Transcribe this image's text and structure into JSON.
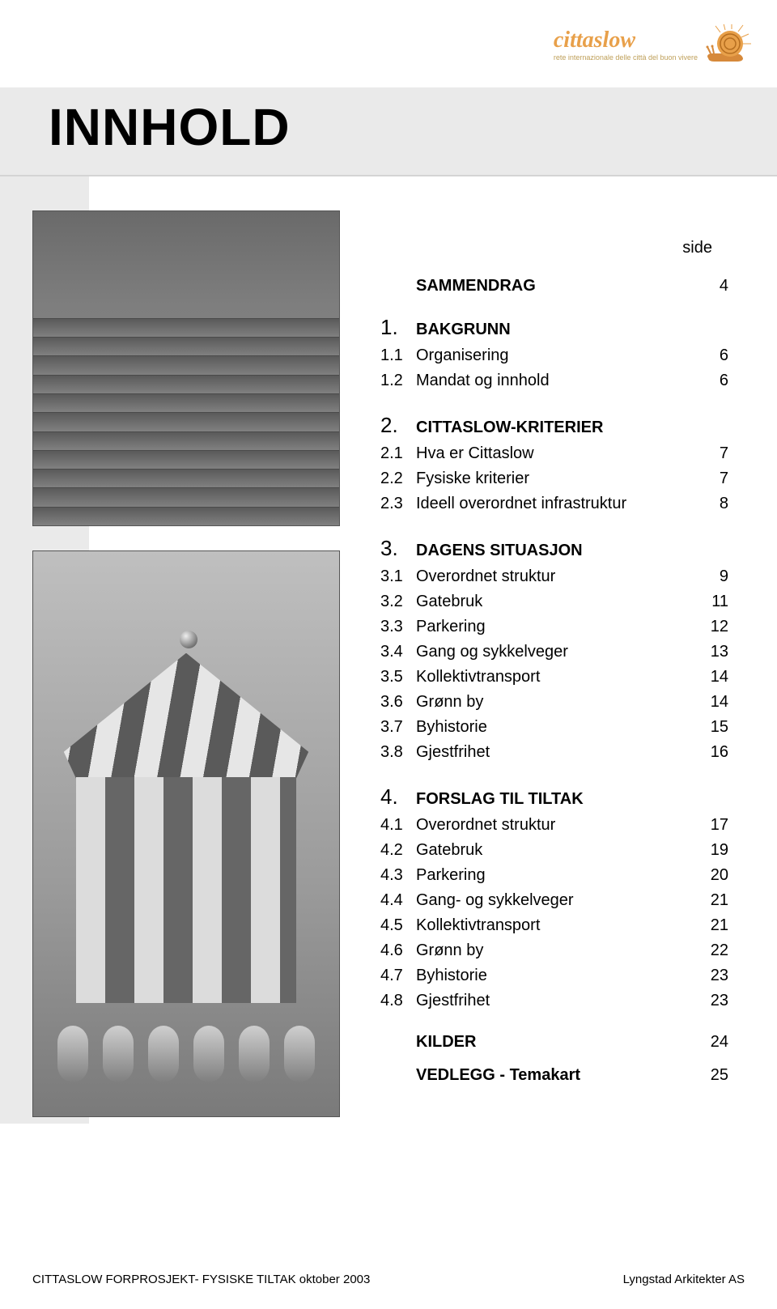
{
  "logo": {
    "brand_text": "cittaslow",
    "tagline": "rete internazionale delle città del buon vivere",
    "brand_color": "#e8a04a",
    "tagline_color": "#bfa05a",
    "snail_shell_color": "#e8a04a",
    "snail_body_color": "#d6893a"
  },
  "title": "INNHOLD",
  "side_label": "side",
  "sections": [
    {
      "num": "",
      "title": "SAMMENDRAG",
      "page": "4",
      "items": []
    },
    {
      "num": "1.",
      "title": "BAKGRUNN",
      "page": "",
      "items": [
        {
          "sub": "1.1",
          "label": "Organisering",
          "page": "6"
        },
        {
          "sub": "1.2",
          "label": "Mandat og innhold",
          "page": "6"
        }
      ]
    },
    {
      "num": "2.",
      "title": "CITTASLOW-KRITERIER",
      "page": "",
      "items": [
        {
          "sub": "2.1",
          "label": "Hva er Cittaslow",
          "page": "7"
        },
        {
          "sub": "2.2",
          "label": "Fysiske kriterier",
          "page": "7"
        },
        {
          "sub": "2.3",
          "label": "Ideell overordnet infrastruktur",
          "page": "8"
        }
      ]
    },
    {
      "num": "3.",
      "title": "DAGENS SITUASJON",
      "page": "",
      "items": [
        {
          "sub": "3.1",
          "label": "Overordnet struktur",
          "page": "9"
        },
        {
          "sub": "3.2",
          "label": "Gatebruk",
          "page": "11"
        },
        {
          "sub": "3.3",
          "label": "Parkering",
          "page": "12"
        },
        {
          "sub": "3.4",
          "label": "Gang og sykkelveger",
          "page": "13"
        },
        {
          "sub": "3.5",
          "label": "Kollektivtransport",
          "page": "14"
        },
        {
          "sub": "3.6",
          "label": "Grønn by",
          "page": "14"
        },
        {
          "sub": "3.7",
          "label": "Byhistorie",
          "page": "15"
        },
        {
          "sub": "3.8",
          "label": "Gjestfrihet",
          "page": "16"
        }
      ]
    },
    {
      "num": "4.",
      "title": "FORSLAG TIL TILTAK",
      "page": "",
      "items": [
        {
          "sub": "4.1",
          "label": "Overordnet struktur",
          "page": "17"
        },
        {
          "sub": "4.2",
          "label": "Gatebruk",
          "page": "19"
        },
        {
          "sub": "4.3",
          "label": "Parkering",
          "page": "20"
        },
        {
          "sub": "4.4",
          "label": "Gang- og sykkelveger",
          "page": "21"
        },
        {
          "sub": "4.5",
          "label": "Kollektivtransport",
          "page": "21"
        },
        {
          "sub": "4.6",
          "label": "Grønn by",
          "page": "22"
        },
        {
          "sub": "4.7",
          "label": "Byhistorie",
          "page": "23"
        },
        {
          "sub": "4.8",
          "label": "Gjestfrihet",
          "page": "23"
        }
      ]
    }
  ],
  "tail_rows": [
    {
      "title": "KILDER",
      "page": "24"
    },
    {
      "title": "VEDLEGG  - Temakart",
      "page": "25"
    }
  ],
  "footer": {
    "left": "CITTASLOW  FORPROSJEKT- FYSISKE TILTAK  oktober 2003",
    "right": "Lyngstad Arkitekter AS"
  },
  "colors": {
    "band_bg": "#eaeaea",
    "page_bg": "#ffffff",
    "text": "#000000"
  }
}
